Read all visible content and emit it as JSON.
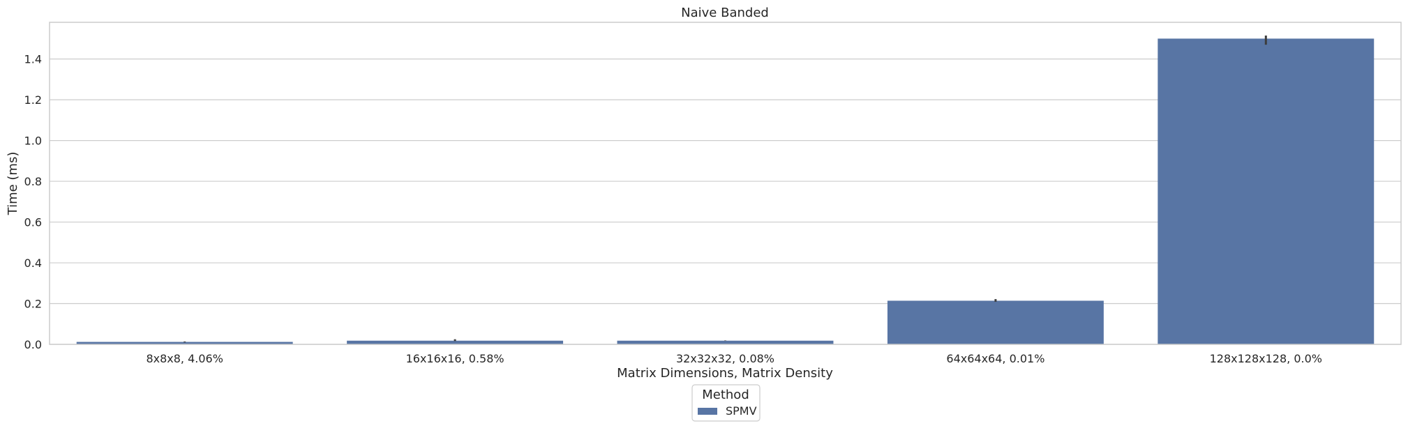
{
  "chart_data": {
    "type": "bar",
    "title": "Naive Banded",
    "xlabel": "Matrix Dimensions, Matrix Density",
    "ylabel": "Time (ms)",
    "categories": [
      "8x8x8, 4.06%",
      "16x16x16, 0.58%",
      "32x32x32, 0.08%",
      "64x64x64, 0.01%",
      "128x128x128, 0.0%"
    ],
    "series": [
      {
        "name": "SPMV",
        "values": [
          0.012,
          0.018,
          0.018,
          0.214,
          1.5
        ],
        "error": [
          [
            0.01,
            0.014
          ],
          [
            0.016,
            0.025
          ],
          [
            0.017,
            0.019
          ],
          [
            0.209,
            0.222
          ],
          [
            1.47,
            1.515
          ]
        ]
      }
    ],
    "ylim": [
      0,
      1.58
    ],
    "yticks": [
      "0.0",
      "0.2",
      "0.4",
      "0.6",
      "0.8",
      "1.0",
      "1.2",
      "1.4"
    ],
    "ytick_values": [
      0,
      0.2,
      0.4,
      0.6,
      0.8,
      1.0,
      1.2,
      1.4
    ],
    "grid": true,
    "legend": {
      "title": "Method",
      "placement": "bottom-center"
    },
    "colors": {
      "bar": "#5875a4",
      "grid": "#cccccc",
      "frame": "#cccccc",
      "errorbar": "#3d3d3d"
    }
  }
}
